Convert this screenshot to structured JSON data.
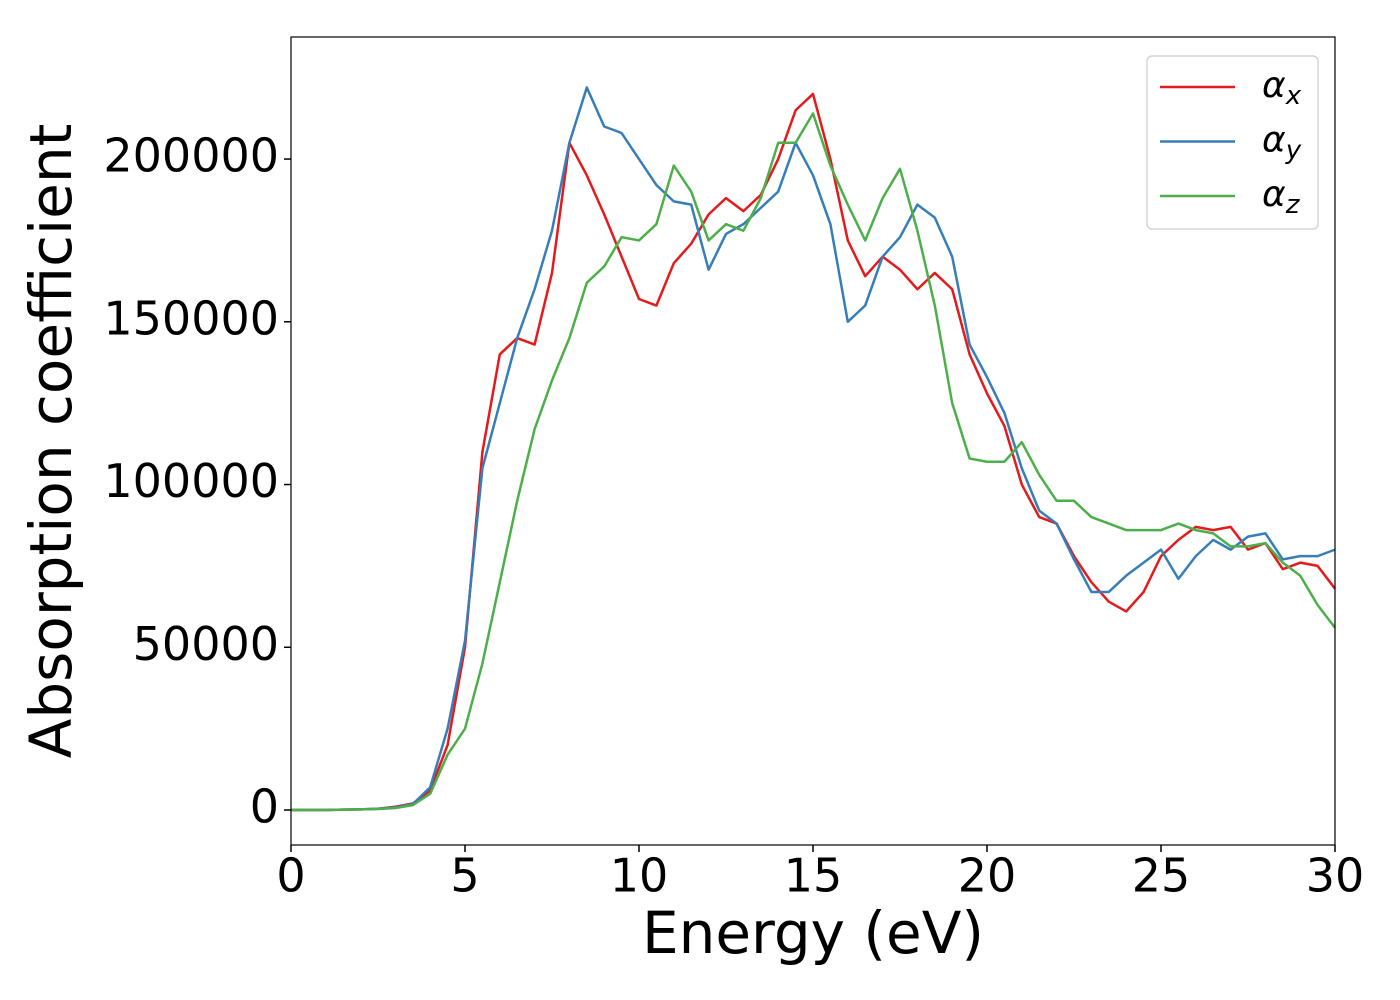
{
  "chart_data": {
    "type": "line",
    "xlabel": "Energy (eV)",
    "ylabel": "Absorption coefficient",
    "x": [
      0,
      0.5,
      1,
      1.5,
      2,
      2.5,
      3,
      3.5,
      4,
      4.5,
      5,
      5.5,
      6,
      6.5,
      7,
      7.5,
      8,
      8.5,
      9,
      9.5,
      10,
      10.5,
      11,
      11.5,
      12,
      12.5,
      13,
      13.5,
      14,
      14.5,
      15,
      15.5,
      16,
      16.5,
      17,
      17.5,
      18,
      18.5,
      19,
      19.5,
      20,
      20.5,
      21,
      21.5,
      22,
      22.5,
      23,
      23.5,
      24,
      24.5,
      25,
      25.5,
      26,
      26.5,
      27,
      27.5,
      28,
      28.5,
      29,
      29.5,
      30
    ],
    "series": [
      {
        "name": "αx",
        "color": "#e41a1c",
        "values": [
          0,
          0,
          0,
          100,
          200,
          400,
          1000,
          2000,
          6000,
          20000,
          50000,
          110000,
          140000,
          145000,
          143000,
          165000,
          205000,
          195000,
          183000,
          170000,
          157000,
          155000,
          168000,
          174000,
          183000,
          188000,
          184000,
          189000,
          200000,
          215000,
          220000,
          200000,
          175000,
          164000,
          170000,
          166000,
          160000,
          165000,
          160000,
          140000,
          128000,
          118000,
          100000,
          90000,
          88000,
          78000,
          70000,
          64000,
          61000,
          67000,
          78000,
          83000,
          87000,
          86000,
          87000,
          80000,
          82000,
          74000,
          76000,
          75000,
          68000
        ]
      },
      {
        "name": "αy",
        "color": "#377eb8",
        "values": [
          0,
          0,
          0,
          100,
          200,
          400,
          800,
          1800,
          7000,
          25000,
          52000,
          105000,
          125000,
          145000,
          160000,
          178000,
          205000,
          222000,
          210000,
          208000,
          200000,
          192000,
          187000,
          186000,
          166000,
          177000,
          180000,
          185000,
          190000,
          205000,
          195000,
          180000,
          150000,
          155000,
          170000,
          176000,
          186000,
          182000,
          170000,
          143000,
          133000,
          122000,
          105000,
          92000,
          88000,
          77000,
          67000,
          67000,
          72000,
          76000,
          80000,
          71000,
          78000,
          83000,
          80000,
          84000,
          85000,
          77000,
          78000,
          78000,
          80000
        ]
      },
      {
        "name": "αz",
        "color": "#4daf4a",
        "values": [
          0,
          0,
          0,
          100,
          200,
          300,
          600,
          1500,
          5000,
          17000,
          25000,
          45000,
          70000,
          95000,
          117000,
          132000,
          145000,
          162000,
          167000,
          176000,
          175000,
          180000,
          198000,
          190000,
          175000,
          180000,
          178000,
          188000,
          205000,
          205000,
          214000,
          198000,
          186000,
          175000,
          188000,
          197000,
          178000,
          155000,
          125000,
          108000,
          107000,
          107000,
          113000,
          103000,
          95000,
          95000,
          90000,
          88000,
          86000,
          86000,
          86000,
          88000,
          86000,
          85000,
          81000,
          81000,
          82000,
          76000,
          72000,
          63000,
          56000
        ]
      }
    ],
    "xlim": [
      0,
      30
    ],
    "xticks": [
      0,
      5,
      10,
      15,
      20,
      25,
      30
    ],
    "ylim": [
      -10750,
      237500
    ],
    "yticks": [
      0,
      50000,
      100000,
      150000,
      200000
    ],
    "legend": "upper right"
  }
}
